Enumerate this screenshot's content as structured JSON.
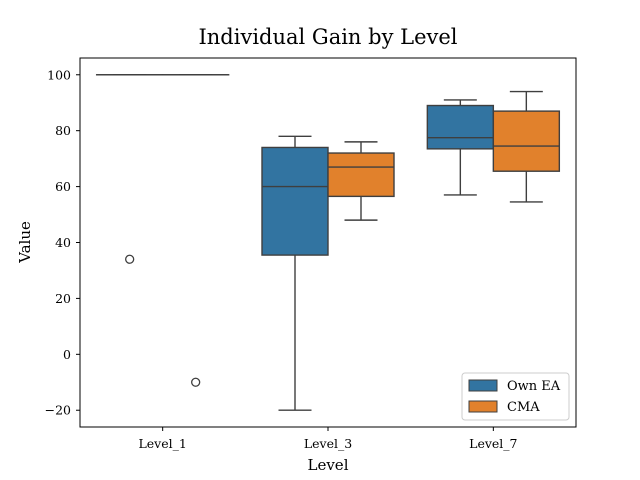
{
  "chart_data": {
    "type": "boxplot",
    "title": "Individual Gain by Level",
    "xlabel": "Level",
    "ylabel": "Value",
    "categories": [
      "Level_1",
      "Level_3",
      "Level_7"
    ],
    "ylim": [
      -26,
      106
    ],
    "yticks": [
      {
        "value": -20,
        "label": "−20"
      },
      {
        "value": 0,
        "label": "0"
      },
      {
        "value": 20,
        "label": "20"
      },
      {
        "value": 40,
        "label": "40"
      },
      {
        "value": 60,
        "label": "60"
      },
      {
        "value": 80,
        "label": "80"
      },
      {
        "value": 100,
        "label": "100"
      }
    ],
    "series": [
      {
        "name": "Own EA",
        "color": "#3274a1",
        "boxes": [
          {
            "category": "Level_1",
            "whisker_low": 100,
            "q1": 100,
            "median": 100,
            "q3": 100,
            "whisker_high": 100,
            "outliers": [
              34
            ]
          },
          {
            "category": "Level_3",
            "whisker_low": -20,
            "q1": 35.5,
            "median": 60,
            "q3": 74,
            "whisker_high": 78,
            "outliers": []
          },
          {
            "category": "Level_7",
            "whisker_low": 57,
            "q1": 73.5,
            "median": 77.5,
            "q3": 89,
            "whisker_high": 91,
            "outliers": []
          }
        ]
      },
      {
        "name": "CMA",
        "color": "#e1812c",
        "boxes": [
          {
            "category": "Level_1",
            "whisker_low": 100,
            "q1": 100,
            "median": 100,
            "q3": 100,
            "whisker_high": 100,
            "outliers": [
              -10
            ]
          },
          {
            "category": "Level_3",
            "whisker_low": 48,
            "q1": 56.5,
            "median": 67,
            "q3": 72,
            "whisker_high": 76,
            "outliers": []
          },
          {
            "category": "Level_7",
            "whisker_low": 54.5,
            "q1": 65.5,
            "median": 74.5,
            "q3": 87,
            "whisker_high": 94,
            "outliers": []
          }
        ]
      }
    ],
    "legend": {
      "position": "lower-right",
      "entries": [
        "Own EA",
        "CMA"
      ]
    },
    "grid": false
  }
}
